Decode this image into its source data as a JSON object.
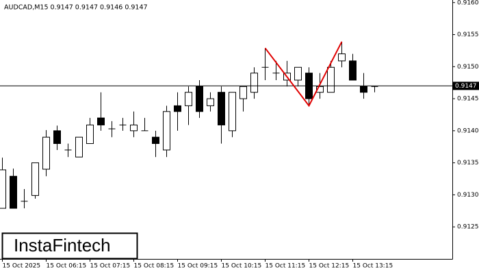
{
  "chart_data": {
    "type": "candlestick",
    "title": "AUDCAD,M15  0.9147 0.9147 0.9146 0.9147",
    "watermark": "InstaFintech",
    "categories": [
      "15 Oct 2025",
      null,
      null,
      null,
      "15 Oct 06:15",
      null,
      null,
      null,
      "15 Oct 07:15",
      null,
      null,
      null,
      "15 Oct 08:15",
      null,
      null,
      null,
      "15 Oct 09:15",
      null,
      null,
      null,
      "15 Oct 10:15",
      null,
      null,
      null,
      "15 Oct 11:15",
      null,
      null,
      null,
      "15 Oct 12:15",
      null,
      null,
      null,
      "15 Oct 13:15",
      null,
      null
    ],
    "open": [
      0.91279,
      0.91329,
      0.9129,
      0.91299,
      0.9134,
      0.914,
      0.9137,
      0.91359,
      0.9138,
      0.9142,
      0.91403,
      0.91409,
      0.914,
      0.914,
      0.9139,
      0.9137,
      0.91439,
      0.91439,
      0.91469,
      0.91439,
      0.9146,
      0.914,
      0.9145,
      0.9146,
      0.91499,
      0.9149,
      0.91479,
      0.91479,
      0.9149,
      0.9146,
      0.9146,
      0.91509,
      0.91509,
      0.91469,
      0.91469
    ],
    "high": [
      0.91358,
      0.91341,
      0.91309,
      0.9135,
      0.91401,
      0.91408,
      0.9138,
      0.9139,
      0.9142,
      0.9146,
      0.91415,
      0.9142,
      0.9143,
      0.9142,
      0.914,
      0.91439,
      0.9146,
      0.91469,
      0.91479,
      0.9146,
      0.91469,
      0.9146,
      0.91469,
      0.91499,
      0.91529,
      0.91509,
      0.91509,
      0.91499,
      0.91499,
      0.9149,
      0.91509,
      0.91539,
      0.9152,
      0.9149,
      0.91469
    ],
    "low": [
      0.91279,
      0.91279,
      0.91279,
      0.91294,
      0.91329,
      0.9137,
      0.91359,
      0.91359,
      0.9138,
      0.914,
      0.9139,
      0.914,
      0.9139,
      0.914,
      0.91359,
      0.91359,
      0.914,
      0.91409,
      0.9142,
      0.9143,
      0.9138,
      0.9139,
      0.9143,
      0.9145,
      0.91479,
      0.91479,
      0.91469,
      0.91469,
      0.91439,
      0.9145,
      0.9146,
      0.91499,
      0.91479,
      0.9145,
      0.9146
    ],
    "close": [
      0.91339,
      0.91279,
      0.9129,
      0.9135,
      0.9139,
      0.9138,
      0.9137,
      0.9139,
      0.91409,
      0.91409,
      0.91403,
      0.91409,
      0.91409,
      0.914,
      0.9138,
      0.9143,
      0.9143,
      0.9146,
      0.9143,
      0.9145,
      0.91409,
      0.9146,
      0.91469,
      0.9149,
      0.91499,
      0.9149,
      0.9149,
      0.91499,
      0.9145,
      0.91469,
      0.91499,
      0.9152,
      0.91479,
      0.9146,
      0.91469
    ],
    "up_color": "#ffffff",
    "down_color": "#000000",
    "current_price": 0.9147,
    "pattern_line": {
      "color": "#e00000",
      "x": [
        24,
        28,
        31
      ],
      "y": [
        0.91529,
        0.91439,
        0.91539
      ]
    },
    "ylim": [
      0.912,
      0.91604
    ],
    "yticks": [
      0.9125,
      {
        "value": 0.913,
        "label": "0.9130"
      },
      0.9135,
      {
        "value": 0.914,
        "label": "0.9140"
      },
      0.9145,
      {
        "value": 0.915,
        "label": "0.9150"
      },
      0.9155,
      {
        "value": 0.916,
        "label": "0.9160"
      }
    ]
  }
}
